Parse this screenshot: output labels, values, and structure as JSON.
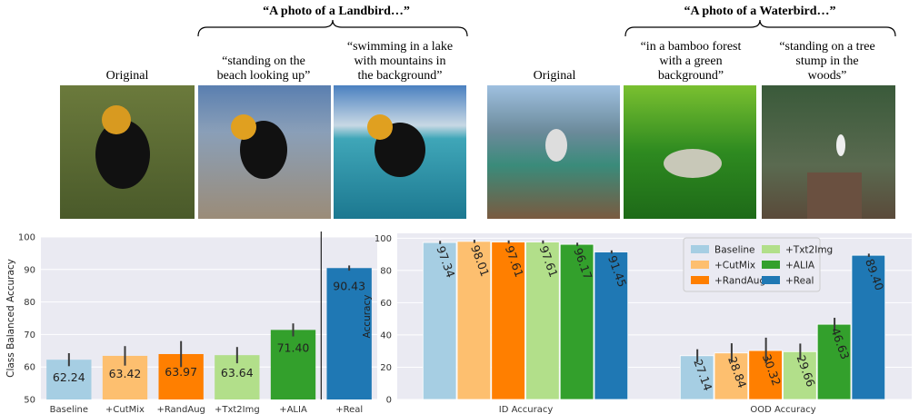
{
  "figure": {
    "landbird": {
      "heading": "“A photo of a Landbird…”",
      "captions": [
        [
          "Original"
        ],
        [
          "“standing on the",
          "beach looking up”"
        ],
        [
          "“swimming in a lake",
          "with mountains in",
          "the background”"
        ]
      ]
    },
    "waterbird": {
      "heading": "“A photo of a Waterbird…”",
      "captions": [
        [
          "Original"
        ],
        [
          "“in a bamboo forest",
          "with a green",
          "background”"
        ],
        [
          "“standing on a tree",
          "stump in the",
          "woods”"
        ]
      ]
    }
  },
  "chart_data": [
    {
      "type": "bar",
      "y_label": "Class Balanced Accuracy",
      "categories": [
        "Baseline",
        "+CutMix",
        "+RandAug",
        "+Txt2Img",
        "+ALIA",
        "+Real"
      ],
      "values": [
        62.24,
        63.42,
        63.97,
        63.64,
        71.4,
        90.43
      ],
      "value_labels": [
        "62.24",
        "63.42",
        "63.97",
        "63.64",
        "71.40",
        "90.43"
      ],
      "errors": [
        2,
        3,
        4,
        2.5,
        2,
        0.8
      ],
      "colors": [
        "#a6cee3",
        "#fdbf6f",
        "#ff7f00",
        "#b2df8a",
        "#33a02c",
        "#1f78b4"
      ],
      "ylim": [
        50,
        100
      ],
      "yticks": [
        50,
        60,
        70,
        80,
        90,
        100
      ],
      "grid": true
    },
    {
      "type": "grouped_bar",
      "y_label": "Accuracy",
      "categories": [
        "ID Accuracy",
        "OOD Accuracy"
      ],
      "series": [
        {
          "name": "Baseline",
          "color": "#a6cee3",
          "values": [
            97.34,
            27.14
          ],
          "value_labels": [
            "97.34",
            "27.14"
          ],
          "errors": [
            1,
            4
          ]
        },
        {
          "name": "+CutMix",
          "color": "#fdbf6f",
          "values": [
            98.01,
            28.84
          ],
          "value_labels": [
            "98.01",
            "28.84"
          ],
          "errors": [
            1,
            6
          ]
        },
        {
          "name": "+RandAug",
          "color": "#ff7f00",
          "values": [
            97.61,
            30.32
          ],
          "value_labels": [
            "97.61",
            "30.32"
          ],
          "errors": [
            1,
            8
          ]
        },
        {
          "name": "+Txt2Img",
          "color": "#b2df8a",
          "values": [
            97.61,
            29.66
          ],
          "value_labels": [
            "97.61",
            "29.66"
          ],
          "errors": [
            1,
            5
          ]
        },
        {
          "name": "+ALIA",
          "color": "#33a02c",
          "values": [
            96.17,
            46.63
          ],
          "value_labels": [
            "96.17",
            "46.63"
          ],
          "errors": [
            1,
            4
          ]
        },
        {
          "name": "+Real",
          "color": "#1f78b4",
          "values": [
            91.45,
            89.4
          ],
          "value_labels": [
            "91.45",
            "89.40"
          ],
          "errors": [
            1,
            1
          ]
        }
      ],
      "ylim": [
        0,
        103
      ],
      "yticks": [
        0,
        20,
        40,
        60,
        80,
        100
      ],
      "grid": true,
      "legend": "upper right"
    }
  ]
}
